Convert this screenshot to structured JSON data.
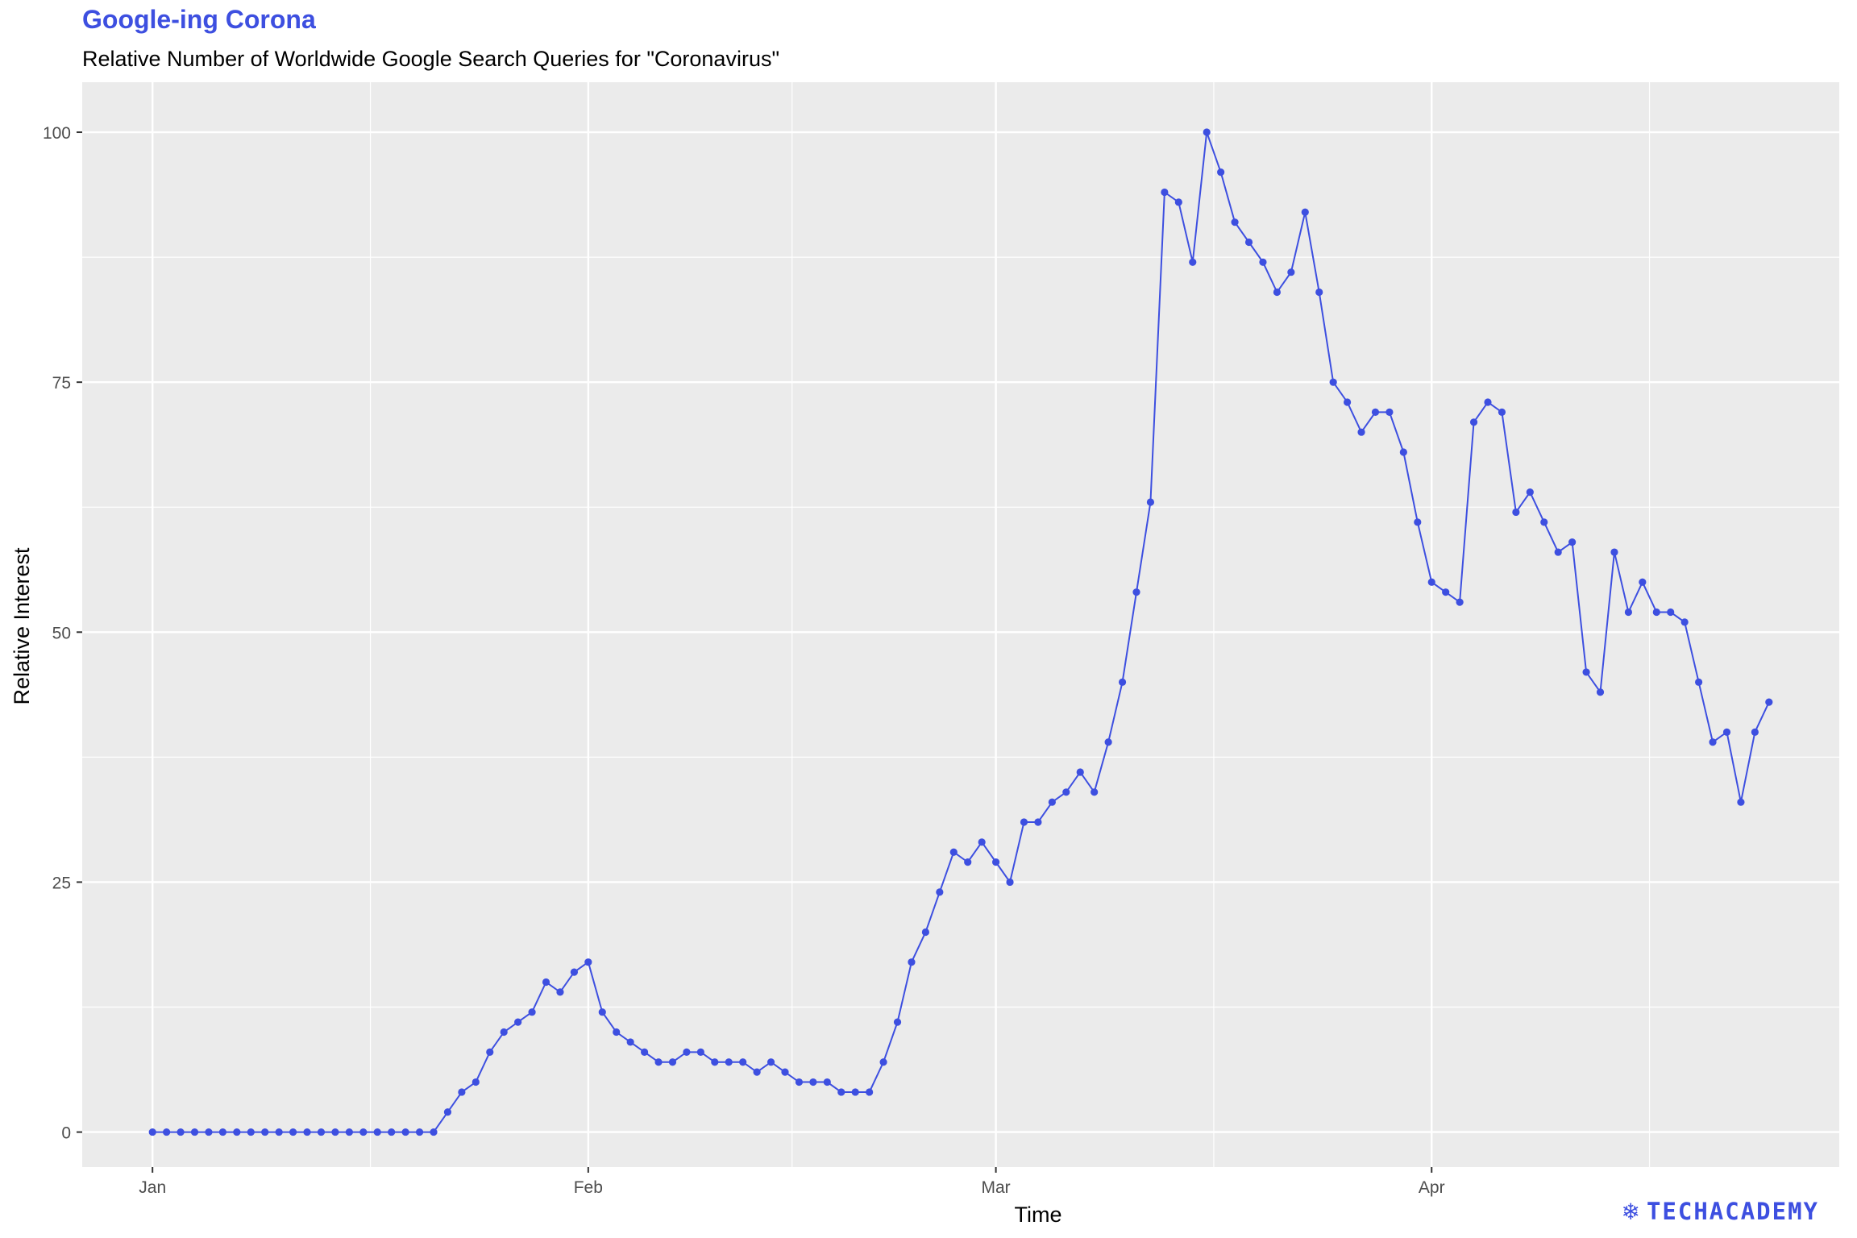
{
  "header": {
    "title": "Google-ing Corona",
    "subtitle": "Relative Number of Worldwide Google Search Queries for \"Coronavirus\""
  },
  "brand": {
    "name": "TECHACADEMY",
    "icon": "snowflake-icon"
  },
  "colors": {
    "accent": "#3d4fe0",
    "panel": "#ebebeb",
    "grid": "#ffffff"
  },
  "chart_data": {
    "type": "line",
    "markers": true,
    "title": "Google-ing Corona",
    "subtitle": "Relative Number of Worldwide Google Search Queries for \"Coronavirus\"",
    "xlabel": "Time",
    "ylabel": "Relative Interest",
    "x_start": "2020-01-01",
    "x_end": "2020-04-26",
    "xlim": [
      "2019-12-27",
      "2020-04-30"
    ],
    "x_ticks": [
      {
        "date": "2020-01-01",
        "label": "Jan"
      },
      {
        "date": "2020-02-01",
        "label": "Feb"
      },
      {
        "date": "2020-03-01",
        "label": "Mar"
      },
      {
        "date": "2020-04-01",
        "label": "Apr"
      }
    ],
    "ylim": [
      -3.5,
      105
    ],
    "y_ticks": [
      0,
      25,
      50,
      75,
      100
    ],
    "grid": true,
    "legend": "none",
    "series": [
      {
        "values": [
          0,
          0,
          0,
          0,
          0,
          0,
          0,
          0,
          0,
          0,
          0,
          0,
          0,
          0,
          0,
          0,
          0,
          0,
          0,
          0,
          0,
          2,
          4,
          5,
          8,
          10,
          11,
          12,
          15,
          14,
          16,
          17,
          12,
          10,
          9,
          8,
          7,
          7,
          8,
          8,
          7,
          7,
          7,
          6,
          7,
          6,
          5,
          5,
          5,
          4,
          4,
          4,
          7,
          11,
          17,
          20,
          24,
          28,
          27,
          29,
          27,
          25,
          31,
          31,
          33,
          34,
          36,
          34,
          39,
          45,
          54,
          63,
          94,
          93,
          87,
          100,
          96,
          91,
          89,
          87,
          84,
          86,
          92,
          84,
          75,
          73,
          70,
          72,
          72,
          68,
          61,
          55,
          54,
          53,
          71,
          73,
          72,
          62,
          64,
          61,
          58,
          59,
          46,
          44,
          58,
          52,
          55,
          52,
          52,
          51,
          45,
          39,
          40,
          33,
          40,
          43
        ]
      }
    ]
  }
}
